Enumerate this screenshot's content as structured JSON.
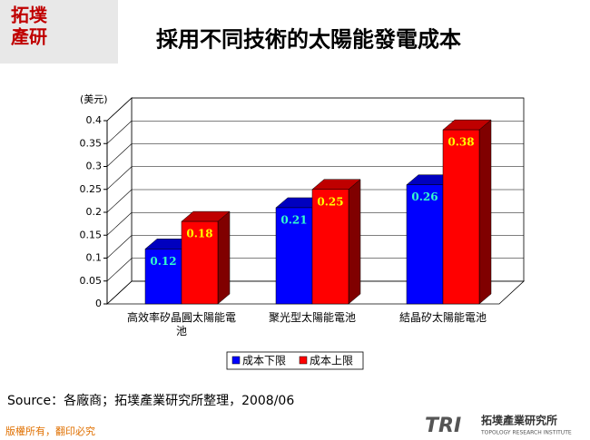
{
  "logo_lines": [
    "拓墣",
    "產研"
  ],
  "chart_data": {
    "type": "bar3d",
    "title": "採用不同技術的太陽能發電成本",
    "y_label": "(美元)",
    "categories": [
      "高效率矽晶圓太陽能電池",
      "聚光型太陽能電池",
      "結晶矽太陽能電池"
    ],
    "series": [
      {
        "name": "成本下限",
        "color": "#0000ff",
        "label_color": "#33ffcc",
        "values": [
          0.12,
          0.21,
          0.26
        ]
      },
      {
        "name": "成本上限",
        "color": "#ff0000",
        "label_color": "#ffff00",
        "values": [
          0.18,
          0.25,
          0.38
        ]
      }
    ],
    "ylim": [
      0,
      0.4
    ],
    "yticks": [
      0,
      0.05,
      0.1,
      0.15,
      0.2,
      0.25,
      0.3,
      0.35,
      0.4
    ],
    "grid": true
  },
  "source": "Source：各廠商；拓墣產業研究所整理，2008/06",
  "footer": "版權所有，翻印必究",
  "brand": {
    "mark": "TRI",
    "name": "拓墣產業研究所",
    "english": "TOPOLOGY RESEARCH INSTITUTE"
  }
}
